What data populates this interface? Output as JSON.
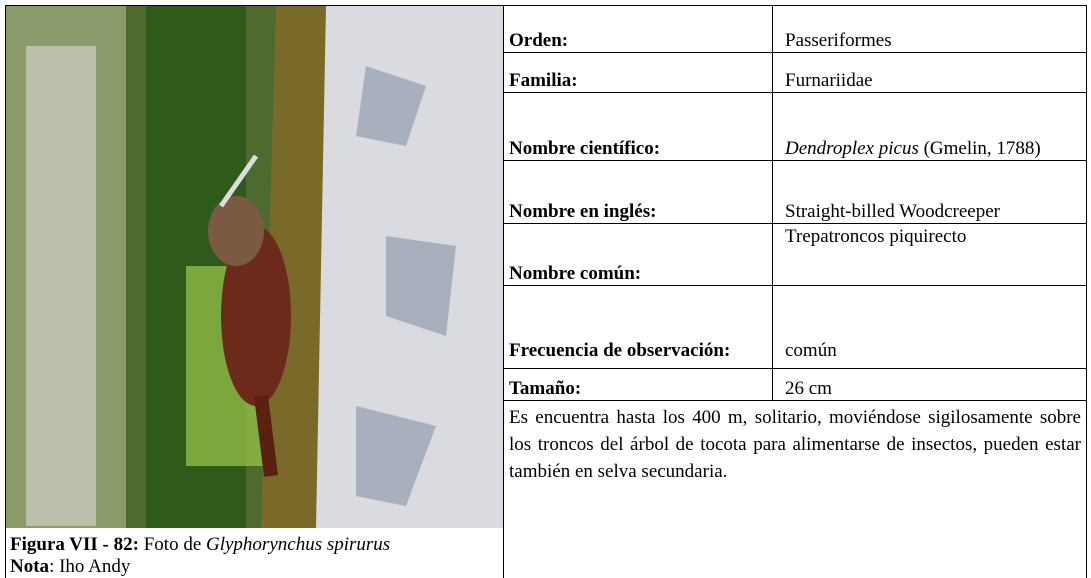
{
  "rows": [
    {
      "label": "Orden:",
      "value": "Passeriformes"
    },
    {
      "label": "Familia:",
      "value": "Furnariidae"
    },
    {
      "label": "Nombre científico:",
      "value_italic": "Dendroplex picus",
      "value": "(Gmelin, 1788)"
    },
    {
      "label": "Nombre en inglés:",
      "value": "Straight-billed Woodcreeper"
    },
    {
      "label": "Nombre común:",
      "value": "Trepatroncos piquirecto"
    },
    {
      "label": "Frecuencia de observación:",
      "value": "común"
    },
    {
      "label": "Tamaño:",
      "value": "26 cm"
    }
  ],
  "description": "Es encuentra hasta los 400 m, solitario, moviéndose sigilosamente sobre los troncos del árbol de tocota para alimentarse de insectos, pueden estar también en selva secundaria.",
  "caption": {
    "label": "Figura VII - 82:",
    "text": "Foto de",
    "species": "Glyphorynchus spirurus"
  },
  "note": {
    "label": "Nota",
    "text": ": Iho Andy"
  }
}
